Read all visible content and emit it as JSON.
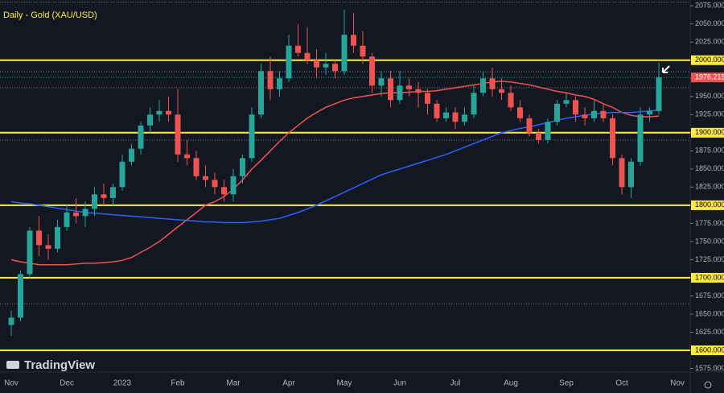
{
  "chart_data": {
    "type": "candlestick",
    "title": "Daily - Gold (XAU/USD)",
    "brand": "TradingView",
    "categories": [
      "Nov",
      null,
      null,
      null,
      null,
      null,
      "Dec",
      null,
      null,
      null,
      null,
      null,
      "2023",
      null,
      null,
      null,
      null,
      null,
      "Feb",
      null,
      null,
      null,
      null,
      null,
      "Mar",
      null,
      null,
      null,
      null,
      null,
      "Apr",
      null,
      null,
      null,
      null,
      null,
      "May",
      null,
      null,
      null,
      null,
      null,
      "Jun",
      null,
      null,
      null,
      null,
      null,
      "Jul",
      null,
      null,
      null,
      null,
      null,
      "Aug",
      null,
      null,
      null,
      null,
      null,
      "Sep",
      null,
      null,
      null,
      null,
      null,
      "Oct",
      null,
      null,
      null,
      null,
      null,
      "Nov"
    ],
    "open": [
      1635,
      1645,
      1705,
      1765,
      1745,
      1740,
      1770,
      1790,
      1785,
      1795,
      1815,
      1810,
      1825,
      1860,
      1878,
      1910,
      1925,
      1930,
      1925,
      1870,
      1865,
      1840,
      1835,
      1825,
      1815,
      1840,
      1865,
      1925,
      1985,
      1960,
      1975,
      2020,
      2010,
      2000,
      1990,
      1995,
      1985,
      2035,
      2020,
      2005,
      1965,
      1975,
      1945,
      1965,
      1960,
      1955,
      1940,
      1920,
      1928,
      1915,
      1925,
      1955,
      1975,
      1960,
      1955,
      1935,
      1920,
      1900,
      1890,
      1915,
      1940,
      1945,
      1925,
      1920,
      1930,
      1920,
      1865,
      1825,
      1860,
      1925,
      1930,
      null,
      null
    ],
    "high": [
      1655,
      1710,
      1770,
      1785,
      1760,
      1780,
      1800,
      1810,
      1805,
      1825,
      1830,
      1830,
      1870,
      1885,
      1915,
      1935,
      1945,
      1950,
      1960,
      1890,
      1875,
      1855,
      1845,
      1835,
      1850,
      1870,
      1935,
      1995,
      2005,
      1985,
      2035,
      2050,
      2045,
      2015,
      2010,
      2000,
      2070,
      2065,
      2040,
      2010,
      1985,
      1985,
      1985,
      1975,
      1970,
      1960,
      1945,
      1935,
      1935,
      1935,
      1965,
      1985,
      1990,
      1975,
      1965,
      1945,
      1925,
      1905,
      1920,
      1945,
      1955,
      1950,
      1935,
      1945,
      1940,
      1925,
      1870,
      1865,
      1935,
      1935,
      1997,
      null,
      null
    ],
    "low": [
      1620,
      1640,
      1700,
      1730,
      1725,
      1735,
      1765,
      1775,
      1770,
      1785,
      1800,
      1800,
      1820,
      1855,
      1870,
      1900,
      1915,
      1915,
      1860,
      1855,
      1835,
      1825,
      1815,
      1805,
      1805,
      1830,
      1860,
      1920,
      1945,
      1950,
      1970,
      2005,
      1995,
      1975,
      1980,
      1975,
      1980,
      2010,
      1995,
      1955,
      1950,
      1935,
      1940,
      1950,
      1935,
      1925,
      1915,
      1915,
      1905,
      1910,
      1920,
      1950,
      1950,
      1945,
      1930,
      1915,
      1895,
      1885,
      1885,
      1910,
      1935,
      1915,
      1910,
      1915,
      1915,
      1855,
      1815,
      1810,
      1855,
      1915,
      1925,
      null,
      null
    ],
    "close": [
      1645,
      1705,
      1765,
      1745,
      1740,
      1770,
      1790,
      1785,
      1795,
      1815,
      1810,
      1825,
      1860,
      1878,
      1910,
      1925,
      1930,
      1925,
      1870,
      1865,
      1840,
      1835,
      1825,
      1815,
      1840,
      1865,
      1925,
      1985,
      1960,
      1975,
      2020,
      2010,
      2000,
      1990,
      1995,
      1985,
      2035,
      2020,
      2005,
      1965,
      1975,
      1945,
      1965,
      1960,
      1955,
      1940,
      1920,
      1928,
      1915,
      1925,
      1955,
      1975,
      1960,
      1955,
      1935,
      1920,
      1900,
      1890,
      1915,
      1940,
      1945,
      1925,
      1920,
      1930,
      1920,
      1865,
      1825,
      1860,
      1925,
      1930,
      1976.215,
      null,
      null
    ],
    "up_color": "#26a69a",
    "down_color": "#ef5350",
    "overlays": [
      {
        "color": "#ef5350",
        "values": [
          1725,
          1722,
          1720,
          1718,
          1718,
          1718,
          1718,
          1719,
          1720,
          1720,
          1721,
          1722,
          1724,
          1728,
          1735,
          1742,
          1750,
          1760,
          1770,
          1780,
          1790,
          1800,
          1805,
          1812,
          1822,
          1835,
          1850,
          1862,
          1875,
          1888,
          1900,
          1910,
          1920,
          1928,
          1935,
          1940,
          1945,
          1948,
          1950,
          1952,
          1954,
          1955,
          1955,
          1956,
          1957,
          1957,
          1958,
          1960,
          1962,
          1964,
          1966,
          1968,
          1970,
          1971,
          1970,
          1968,
          1966,
          1963,
          1960,
          1957,
          1955,
          1952,
          1950,
          1946,
          1940,
          1935,
          1928,
          1924,
          1922,
          1922,
          1923,
          null,
          null
        ]
      },
      {
        "color": "#2962ff",
        "values": [
          1805,
          1803,
          1802,
          1800,
          1798,
          1796,
          1794,
          1792,
          1790,
          1789,
          1788,
          1787,
          1786,
          1785,
          1784,
          1783,
          1782,
          1781,
          1780,
          1779,
          1778,
          1777,
          1777,
          1776,
          1776,
          1776,
          1777,
          1778,
          1780,
          1782,
          1786,
          1790,
          1795,
          1800,
          1806,
          1812,
          1818,
          1824,
          1830,
          1836,
          1842,
          1846,
          1850,
          1854,
          1858,
          1862,
          1866,
          1870,
          1875,
          1880,
          1885,
          1890,
          1895,
          1900,
          1903,
          1906,
          1908,
          1911,
          1914,
          1917,
          1920,
          1922,
          1924,
          1926,
          1927,
          1928,
          1928,
          1928,
          1929,
          1930,
          1931,
          null,
          null
        ]
      }
    ],
    "levels": [
      2000,
      1900,
      1800,
      1700,
      1600
    ],
    "level_color": "#ffeb3b",
    "dotted_levels": [
      2080,
      1984,
      1962,
      1890,
      1664
    ],
    "ylim": [
      1570,
      2083
    ],
    "yticks": [
      {
        "value": 2075,
        "label": "2075.000"
      },
      {
        "value": 2050,
        "label": "2050.000"
      },
      {
        "value": 2025,
        "label": "2025.000"
      },
      {
        "value": 2000,
        "label": "2000.000"
      },
      {
        "value": 1975,
        "label": "1975.000"
      },
      {
        "value": 1950,
        "label": "1950.000"
      },
      {
        "value": 1925,
        "label": "1925.000"
      },
      {
        "value": 1900,
        "label": "1900.000"
      },
      {
        "value": 1875,
        "label": "1875.000"
      },
      {
        "value": 1850,
        "label": "1850.000"
      },
      {
        "value": 1825,
        "label": "1825.000"
      },
      {
        "value": 1800,
        "label": "1800.000"
      },
      {
        "value": 1775,
        "label": "1775.000"
      },
      {
        "value": 1750,
        "label": "1750.000"
      },
      {
        "value": 1725,
        "label": "1725.000"
      },
      {
        "value": 1700,
        "label": "1700.000"
      },
      {
        "value": 1675,
        "label": "1675.000"
      },
      {
        "value": 1650,
        "label": "1650.000"
      },
      {
        "value": 1625,
        "label": "1625.000"
      },
      {
        "value": 1600,
        "label": "1600.000"
      },
      {
        "value": 1575,
        "label": "1575.000"
      }
    ]
  }
}
